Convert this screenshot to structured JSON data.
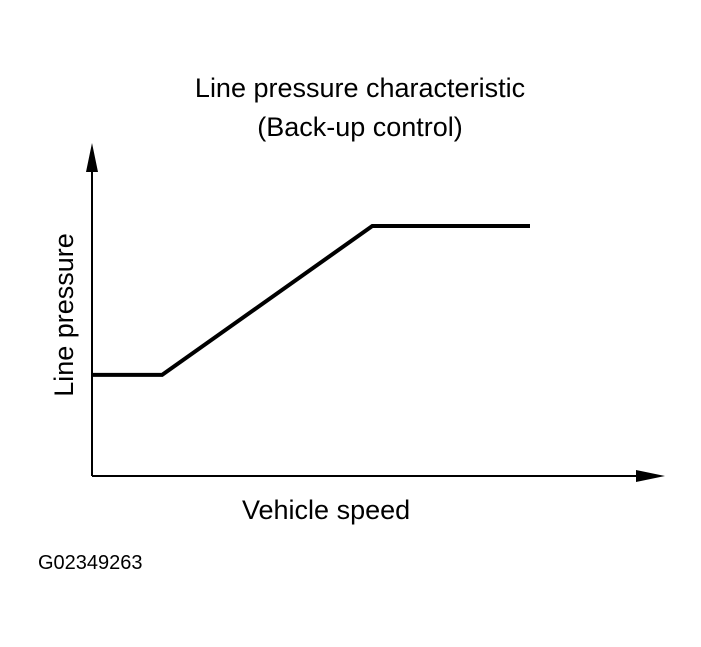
{
  "chart_data": {
    "type": "line",
    "title": "Line pressure characteristic",
    "subtitle": "(Back-up control)",
    "xlabel": "Vehicle speed",
    "ylabel": "Line pressure",
    "x_ticks": [],
    "y_ticks": [],
    "grid": false,
    "legend": "none",
    "xlim": [
      0,
      100
    ],
    "ylim": [
      0,
      100
    ],
    "series": [
      {
        "x": [
          0,
          16,
          64,
          100
        ],
        "y": [
          32,
          32,
          100,
          100
        ]
      }
    ]
  },
  "figure_id": "G02349263",
  "colors": {
    "line": "#000000",
    "background": "#ffffff"
  }
}
